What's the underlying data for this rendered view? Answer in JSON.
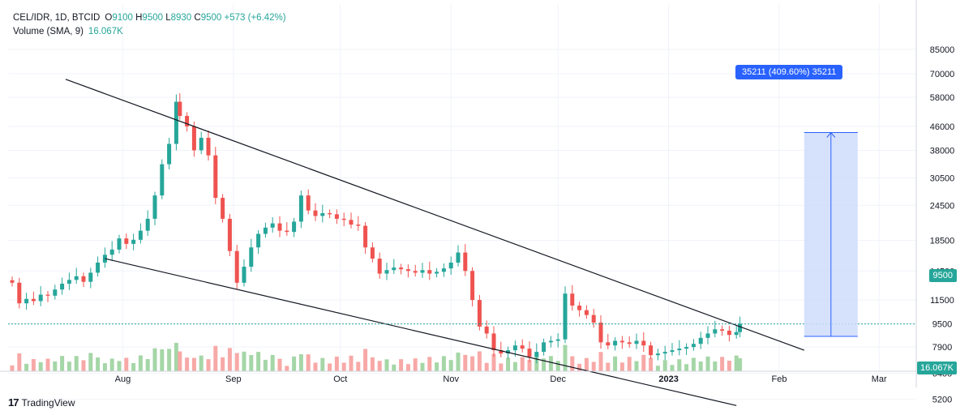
{
  "legend": {
    "symbol": "CEL/IDR, 1D, BTCID",
    "o_label": "O",
    "o": "9100",
    "h_label": "H",
    "h": "9500",
    "l_label": "L",
    "l": "8930",
    "c_label": "C",
    "c": "9500",
    "change": "+573 (+6.42%)",
    "volume_label": "Volume (SMA, 9)",
    "volume_value": "16.067K"
  },
  "brand": "TradingView",
  "colors": {
    "up": "#26a69a",
    "down": "#ef5350",
    "accent": "#2962ff",
    "projection_fill": "#cfdcfb",
    "grid": "#f0f3fa"
  },
  "chart_data": {
    "type": "candlestick",
    "y_axis": {
      "scale": "log",
      "ticks": [
        "85000",
        "70000",
        "58000",
        "46000",
        "38000",
        "30500",
        "24500",
        "18500",
        "14500",
        "11500",
        "9500",
        "7900",
        "6400",
        "5200"
      ]
    },
    "x_axis": {
      "ticks": [
        "Aug",
        "Sep",
        "Oct",
        "Nov",
        "Dec",
        "2023",
        "Feb",
        "Mar"
      ]
    },
    "last_price": "9500",
    "volume_sma_label": "16.067K",
    "projection_label": "35211 (409.60%) 35211",
    "trendlines": [
      {
        "name": "upper",
        "from": [
          "2022-07-16",
          67000
        ],
        "to": [
          "2023-02-08",
          7700
        ]
      },
      {
        "name": "lower",
        "from": [
          "2022-07-27",
          16000
        ],
        "to": [
          "2023-01-20",
          4950
        ]
      }
    ],
    "projection": {
      "from_date": "2023-02-08",
      "to_date": "2023-02-23",
      "low": 8600,
      "high": 43800
    },
    "close_series": [
      [
        "2022-07-01",
        13200
      ],
      [
        "2022-07-03",
        11200
      ],
      [
        "2022-07-05",
        11600
      ],
      [
        "2022-07-07",
        11400
      ],
      [
        "2022-07-09",
        12000
      ],
      [
        "2022-07-11",
        11900
      ],
      [
        "2022-07-13",
        12500
      ],
      [
        "2022-07-15",
        13100
      ],
      [
        "2022-07-17",
        13500
      ],
      [
        "2022-07-19",
        13900
      ],
      [
        "2022-07-21",
        13300
      ],
      [
        "2022-07-23",
        14300
      ],
      [
        "2022-07-25",
        15500
      ],
      [
        "2022-07-27",
        16500
      ],
      [
        "2022-07-29",
        17200
      ],
      [
        "2022-07-31",
        18800
      ],
      [
        "2022-08-02",
        18000
      ],
      [
        "2022-08-04",
        18600
      ],
      [
        "2022-08-06",
        20000
      ],
      [
        "2022-08-08",
        22000
      ],
      [
        "2022-08-10",
        26500
      ],
      [
        "2022-08-12",
        34000
      ],
      [
        "2022-08-14",
        40000
      ],
      [
        "2022-08-16",
        56000
      ],
      [
        "2022-08-17",
        50000
      ],
      [
        "2022-08-19",
        46000
      ],
      [
        "2022-08-21",
        38000
      ],
      [
        "2022-08-23",
        42000
      ],
      [
        "2022-08-25",
        36500
      ],
      [
        "2022-08-27",
        26000
      ],
      [
        "2022-08-29",
        22000
      ],
      [
        "2022-08-31",
        17000
      ],
      [
        "2022-09-02",
        13200
      ],
      [
        "2022-09-04",
        15000
      ],
      [
        "2022-09-06",
        17500
      ],
      [
        "2022-09-08",
        19500
      ],
      [
        "2022-09-10",
        20500
      ],
      [
        "2022-09-12",
        21200
      ],
      [
        "2022-09-14",
        20000
      ],
      [
        "2022-09-16",
        19800
      ],
      [
        "2022-09-18",
        21500
      ],
      [
        "2022-09-20",
        26500
      ],
      [
        "2022-09-22",
        23500
      ],
      [
        "2022-09-24",
        22500
      ],
      [
        "2022-09-26",
        23000
      ],
      [
        "2022-09-28",
        22800
      ],
      [
        "2022-09-30",
        22000
      ],
      [
        "2022-10-02",
        21800
      ],
      [
        "2022-10-04",
        21000
      ],
      [
        "2022-10-06",
        20800
      ],
      [
        "2022-10-08",
        17500
      ],
      [
        "2022-10-10",
        16000
      ],
      [
        "2022-10-12",
        14200
      ],
      [
        "2022-10-14",
        14600
      ],
      [
        "2022-10-16",
        14900
      ],
      [
        "2022-10-18",
        14700
      ],
      [
        "2022-10-20",
        14500
      ],
      [
        "2022-10-22",
        14300
      ],
      [
        "2022-10-24",
        14600
      ],
      [
        "2022-10-26",
        14200
      ],
      [
        "2022-10-28",
        14400
      ],
      [
        "2022-10-30",
        14800
      ],
      [
        "2022-11-01",
        15500
      ],
      [
        "2022-11-03",
        16800
      ],
      [
        "2022-11-05",
        14500
      ],
      [
        "2022-11-07",
        11500
      ],
      [
        "2022-11-09",
        9300
      ],
      [
        "2022-11-11",
        8800
      ],
      [
        "2022-11-13",
        7700
      ],
      [
        "2022-11-15",
        7500
      ],
      [
        "2022-11-17",
        7700
      ],
      [
        "2022-11-19",
        8000
      ],
      [
        "2022-11-21",
        7800
      ],
      [
        "2022-11-23",
        7300
      ],
      [
        "2022-11-25",
        7600
      ],
      [
        "2022-11-27",
        8200
      ],
      [
        "2022-11-29",
        8300
      ],
      [
        "2022-12-01",
        8400
      ],
      [
        "2022-12-03",
        12100
      ],
      [
        "2022-12-05",
        11000
      ],
      [
        "2022-12-07",
        10600
      ],
      [
        "2022-12-09",
        10200
      ],
      [
        "2022-12-11",
        9600
      ],
      [
        "2022-12-13",
        8200
      ],
      [
        "2022-12-15",
        8000
      ],
      [
        "2022-12-17",
        8300
      ],
      [
        "2022-12-19",
        8200
      ],
      [
        "2022-12-21",
        8100
      ],
      [
        "2022-12-23",
        8300
      ],
      [
        "2022-12-25",
        8000
      ],
      [
        "2022-12-27",
        7400
      ],
      [
        "2022-12-29",
        7500
      ],
      [
        "2022-12-31",
        7600
      ],
      [
        "2023-01-02",
        7700
      ],
      [
        "2023-01-04",
        7800
      ],
      [
        "2023-01-06",
        7900
      ],
      [
        "2023-01-08",
        8100
      ],
      [
        "2023-01-10",
        8500
      ],
      [
        "2023-01-12",
        8800
      ],
      [
        "2023-01-14",
        9100
      ],
      [
        "2023-01-16",
        9000
      ],
      [
        "2023-01-18",
        8700
      ],
      [
        "2023-01-20",
        8900
      ],
      [
        "2023-01-21",
        9500
      ]
    ]
  }
}
